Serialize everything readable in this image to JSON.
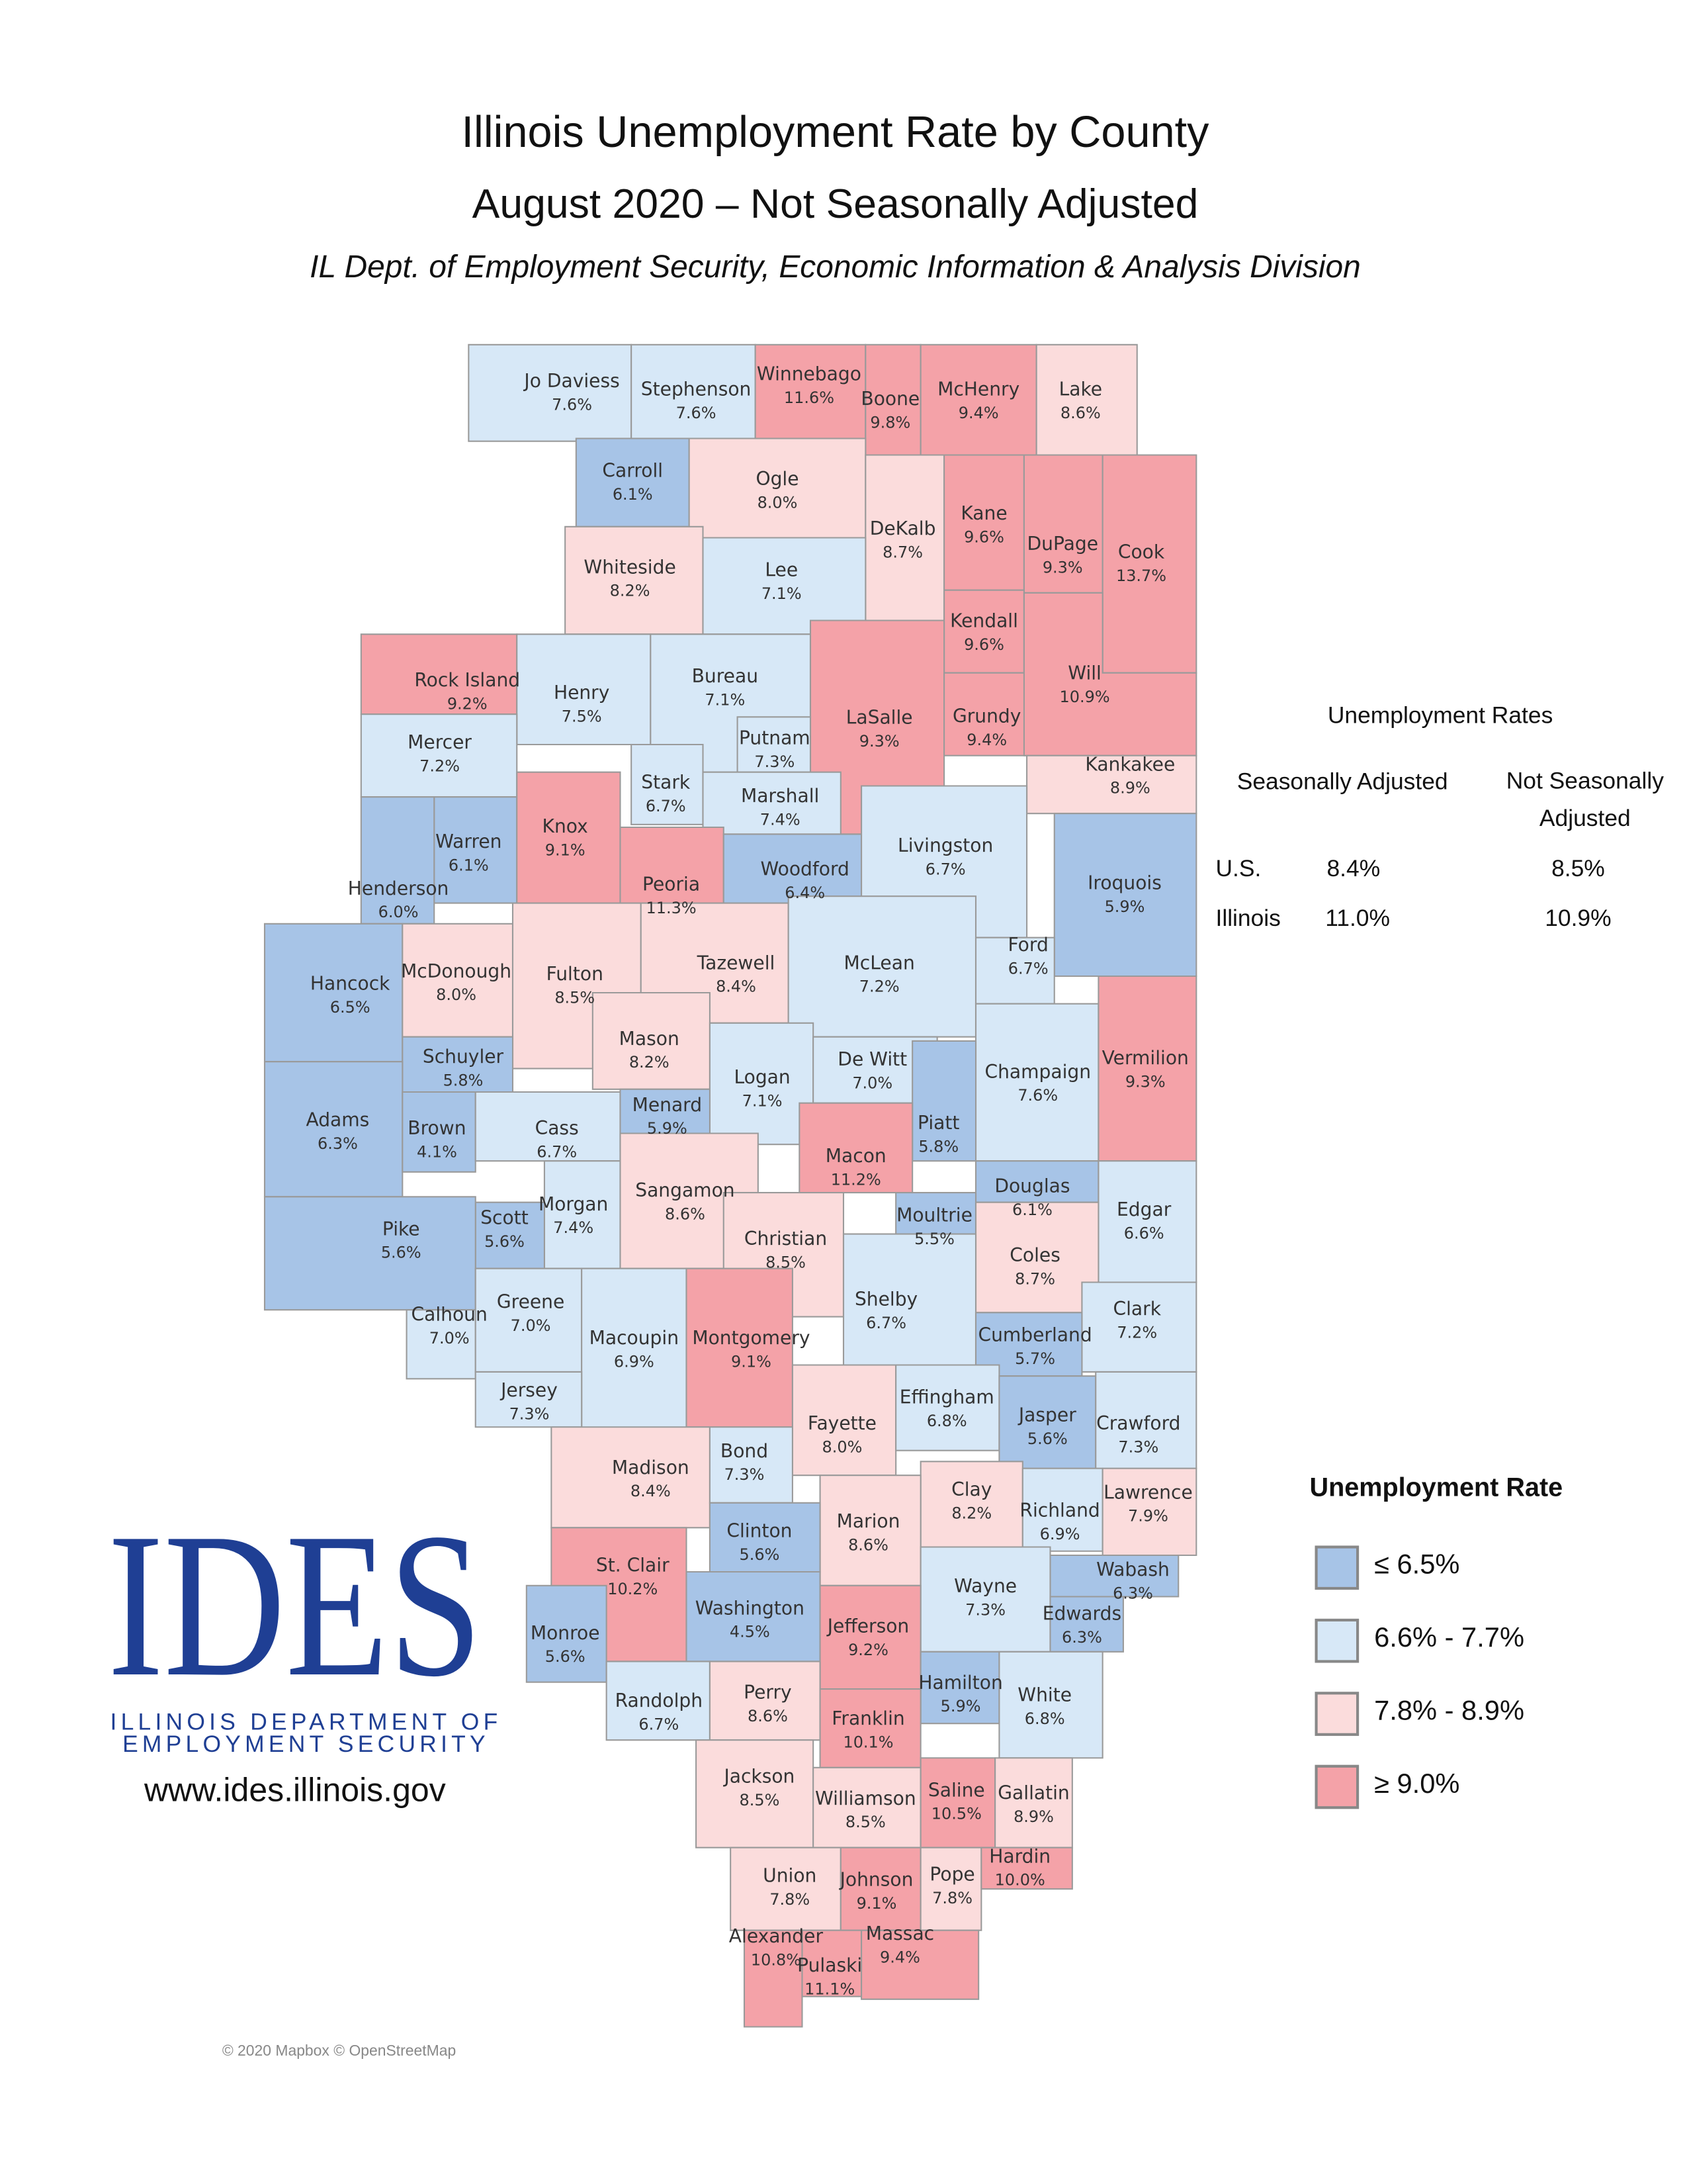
{
  "header": {
    "title": "Illinois Unemployment Rate by County",
    "subtitle": "August 2020 – Not Seasonally Adjusted",
    "source": "IL Dept. of Employment Security, Economic Information & Analysis Division"
  },
  "rates_table": {
    "title": "Unemployment Rates",
    "columns": [
      "Seasonally Adjusted",
      "Not Seasonally Adjusted"
    ],
    "rows": [
      [
        "U.S.",
        "8.4%",
        "8.5%"
      ],
      [
        "Illinois",
        "11.0%",
        "10.9%"
      ]
    ]
  },
  "legend": {
    "title": "Unemployment Rate",
    "items": [
      {
        "label": "≤ 6.5%",
        "max": 6.5,
        "color": "#a7c4e7"
      },
      {
        "label": "6.6% - 7.7%",
        "max": 7.7,
        "color": "#d7e8f7"
      },
      {
        "label": "7.8% - 8.9%",
        "max": 8.9,
        "color": "#fbdcdc"
      },
      {
        "label": "≥ 9.0%",
        "min": 9.0,
        "color": "#f4a2a8"
      }
    ]
  },
  "logo": {
    "mark": "IDES",
    "line1": "ILLINOIS DEPARTMENT OF",
    "line2": "EMPLOYMENT SECURITY",
    "url": "www.ides.illinois.gov"
  },
  "credit": "© 2020 Mapbox © OpenStreetMap",
  "counties": [
    {
      "name": "Jo Daviess",
      "rate": 7.6,
      "label": "7.6%"
    },
    {
      "name": "Stephenson",
      "rate": 7.6,
      "label": "7.6%"
    },
    {
      "name": "Winnebago",
      "rate": 11.6,
      "label": "11.6%"
    },
    {
      "name": "Boone",
      "rate": 9.8,
      "label": "9.8%"
    },
    {
      "name": "McHenry",
      "rate": 9.4,
      "label": "9.4%"
    },
    {
      "name": "Lake",
      "rate": 8.6,
      "label": "8.6%"
    },
    {
      "name": "Carroll",
      "rate": 6.1,
      "label": "6.1%"
    },
    {
      "name": "Ogle",
      "rate": 8.0,
      "label": "8.0%"
    },
    {
      "name": "DeKalb",
      "rate": 8.7,
      "label": "8.7%"
    },
    {
      "name": "Kane",
      "rate": 9.6,
      "label": "9.6%"
    },
    {
      "name": "DuPage",
      "rate": 9.3,
      "label": "9.3%"
    },
    {
      "name": "Cook",
      "rate": 13.7,
      "label": "13.7%"
    },
    {
      "name": "Whiteside",
      "rate": 8.2,
      "label": "8.2%"
    },
    {
      "name": "Lee",
      "rate": 7.1,
      "label": "7.1%"
    },
    {
      "name": "Kendall",
      "rate": 9.6,
      "label": "9.6%"
    },
    {
      "name": "Rock Island",
      "rate": 9.2,
      "label": "9.2%"
    },
    {
      "name": "Henry",
      "rate": 7.5,
      "label": "7.5%"
    },
    {
      "name": "Bureau",
      "rate": 7.1,
      "label": "7.1%"
    },
    {
      "name": "LaSalle",
      "rate": 9.3,
      "label": "9.3%"
    },
    {
      "name": "Grundy",
      "rate": 9.4,
      "label": "9.4%"
    },
    {
      "name": "Will",
      "rate": 10.9,
      "label": "10.9%"
    },
    {
      "name": "Mercer",
      "rate": 7.2,
      "label": "7.2%"
    },
    {
      "name": "Putnam",
      "rate": 7.3,
      "label": "7.3%"
    },
    {
      "name": "Kankakee",
      "rate": 8.9,
      "label": "8.9%"
    },
    {
      "name": "Stark",
      "rate": 6.7,
      "label": "6.7%"
    },
    {
      "name": "Marshall",
      "rate": 7.4,
      "label": "7.4%"
    },
    {
      "name": "Warren",
      "rate": 6.1,
      "label": "6.1%"
    },
    {
      "name": "Knox",
      "rate": 9.1,
      "label": "9.1%"
    },
    {
      "name": "Henderson",
      "rate": 6.0,
      "label": "6.0%"
    },
    {
      "name": "Peoria",
      "rate": 11.3,
      "label": "11.3%"
    },
    {
      "name": "Woodford",
      "rate": 6.4,
      "label": "6.4%"
    },
    {
      "name": "Livingston",
      "rate": 6.7,
      "label": "6.7%"
    },
    {
      "name": "Iroquois",
      "rate": 5.9,
      "label": "5.9%"
    },
    {
      "name": "Hancock",
      "rate": 6.5,
      "label": "6.5%"
    },
    {
      "name": "McDonough",
      "rate": 8.0,
      "label": "8.0%"
    },
    {
      "name": "Fulton",
      "rate": 8.5,
      "label": "8.5%"
    },
    {
      "name": "Tazewell",
      "rate": 8.4,
      "label": "8.4%"
    },
    {
      "name": "McLean",
      "rate": 7.2,
      "label": "7.2%"
    },
    {
      "name": "Ford",
      "rate": 6.7,
      "label": "6.7%"
    },
    {
      "name": "Mason",
      "rate": 8.2,
      "label": "8.2%"
    },
    {
      "name": "Schuyler",
      "rate": 5.8,
      "label": "5.8%"
    },
    {
      "name": "Logan",
      "rate": 7.1,
      "label": "7.1%"
    },
    {
      "name": "De Witt",
      "rate": 7.0,
      "label": "7.0%"
    },
    {
      "name": "Champaign",
      "rate": 7.6,
      "label": "7.6%"
    },
    {
      "name": "Vermilion",
      "rate": 9.3,
      "label": "9.3%"
    },
    {
      "name": "Adams",
      "rate": 6.3,
      "label": "6.3%"
    },
    {
      "name": "Brown",
      "rate": 4.1,
      "label": "4.1%"
    },
    {
      "name": "Cass",
      "rate": 6.7,
      "label": "6.7%"
    },
    {
      "name": "Menard",
      "rate": 5.9,
      "label": "5.9%"
    },
    {
      "name": "Piatt",
      "rate": 5.8,
      "label": "5.8%"
    },
    {
      "name": "Macon",
      "rate": 11.2,
      "label": "11.2%"
    },
    {
      "name": "Douglas",
      "rate": 6.1,
      "label": "6.1%"
    },
    {
      "name": "Edgar",
      "rate": 6.6,
      "label": "6.6%"
    },
    {
      "name": "Morgan",
      "rate": 7.4,
      "label": "7.4%"
    },
    {
      "name": "Scott",
      "rate": 5.6,
      "label": "5.6%"
    },
    {
      "name": "Pike",
      "rate": 5.6,
      "label": "5.6%"
    },
    {
      "name": "Sangamon",
      "rate": 8.6,
      "label": "8.6%"
    },
    {
      "name": "Christian",
      "rate": 8.5,
      "label": "8.5%"
    },
    {
      "name": "Moultrie",
      "rate": 5.5,
      "label": "5.5%"
    },
    {
      "name": "Coles",
      "rate": 8.7,
      "label": "8.7%"
    },
    {
      "name": "Shelby",
      "rate": 6.7,
      "label": "6.7%"
    },
    {
      "name": "Clark",
      "rate": 7.2,
      "label": "7.2%"
    },
    {
      "name": "Calhoun",
      "rate": 7.0,
      "label": "7.0%"
    },
    {
      "name": "Greene",
      "rate": 7.0,
      "label": "7.0%"
    },
    {
      "name": "Macoupin",
      "rate": 6.9,
      "label": "6.9%"
    },
    {
      "name": "Montgomery",
      "rate": 9.1,
      "label": "9.1%"
    },
    {
      "name": "Cumberland",
      "rate": 5.7,
      "label": "5.7%"
    },
    {
      "name": "Jersey",
      "rate": 7.3,
      "label": "7.3%"
    },
    {
      "name": "Fayette",
      "rate": 8.0,
      "label": "8.0%"
    },
    {
      "name": "Effingham",
      "rate": 6.8,
      "label": "6.8%"
    },
    {
      "name": "Jasper",
      "rate": 5.6,
      "label": "5.6%"
    },
    {
      "name": "Crawford",
      "rate": 7.3,
      "label": "7.3%"
    },
    {
      "name": "Madison",
      "rate": 8.4,
      "label": "8.4%"
    },
    {
      "name": "Bond",
      "rate": 7.3,
      "label": "7.3%"
    },
    {
      "name": "Clay",
      "rate": 8.2,
      "label": "8.2%"
    },
    {
      "name": "Richland",
      "rate": 6.9,
      "label": "6.9%"
    },
    {
      "name": "Lawrence",
      "rate": 7.9,
      "label": "7.9%"
    },
    {
      "name": "Marion",
      "rate": 8.6,
      "label": "8.6%"
    },
    {
      "name": "Clinton",
      "rate": 5.6,
      "label": "5.6%"
    },
    {
      "name": "St. Clair",
      "rate": 10.2,
      "label": "10.2%"
    },
    {
      "name": "Wabash",
      "rate": 6.3,
      "label": "6.3%"
    },
    {
      "name": "Wayne",
      "rate": 7.3,
      "label": "7.3%"
    },
    {
      "name": "Edwards",
      "rate": 6.3,
      "label": "6.3%"
    },
    {
      "name": "Washington",
      "rate": 4.5,
      "label": "4.5%"
    },
    {
      "name": "Monroe",
      "rate": 5.6,
      "label": "5.6%"
    },
    {
      "name": "Jefferson",
      "rate": 9.2,
      "label": "9.2%"
    },
    {
      "name": "Randolph",
      "rate": 6.7,
      "label": "6.7%"
    },
    {
      "name": "Perry",
      "rate": 8.6,
      "label": "8.6%"
    },
    {
      "name": "Hamilton",
      "rate": 5.9,
      "label": "5.9%"
    },
    {
      "name": "White",
      "rate": 6.8,
      "label": "6.8%"
    },
    {
      "name": "Franklin",
      "rate": 10.1,
      "label": "10.1%"
    },
    {
      "name": "Jackson",
      "rate": 8.5,
      "label": "8.5%"
    },
    {
      "name": "Williamson",
      "rate": 8.5,
      "label": "8.5%"
    },
    {
      "name": "Saline",
      "rate": 10.5,
      "label": "10.5%"
    },
    {
      "name": "Gallatin",
      "rate": 8.9,
      "label": "8.9%"
    },
    {
      "name": "Union",
      "rate": 7.8,
      "label": "7.8%"
    },
    {
      "name": "Johnson",
      "rate": 9.1,
      "label": "9.1%"
    },
    {
      "name": "Pope",
      "rate": 7.8,
      "label": "7.8%"
    },
    {
      "name": "Hardin",
      "rate": 10.0,
      "label": "10.0%"
    },
    {
      "name": "Alexander",
      "rate": 10.8,
      "label": "10.8%"
    },
    {
      "name": "Pulaski",
      "rate": 11.1,
      "label": "11.1%"
    },
    {
      "name": "Massac",
      "rate": 9.4,
      "label": "9.4%"
    }
  ]
}
